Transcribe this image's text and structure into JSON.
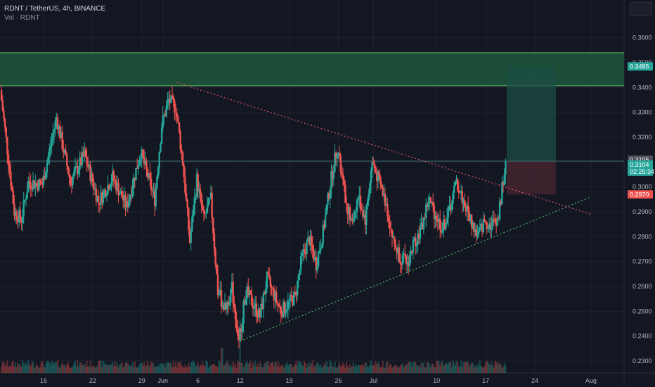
{
  "header": {
    "symbol_line": "RDNT / TetherUS, 4h, BINANCE",
    "volume_line": "Vol · RDNT"
  },
  "chart_data": {
    "type": "candlestick",
    "ylim": [
      0.2252,
      0.3752
    ],
    "y_ticks": [
      "0.3600",
      "0.3500",
      "0.3400",
      "0.3300",
      "0.3200",
      "0.3100",
      "0.3000",
      "0.2900",
      "0.2800",
      "0.2700",
      "0.2600",
      "0.2500",
      "0.2400",
      "0.2300"
    ],
    "x_ticks": [
      "15",
      "22",
      "29",
      "Jun",
      "6",
      "12",
      "19",
      "26",
      "Jul",
      "10",
      "17",
      "24",
      "Aug"
    ],
    "price_path": [
      {
        "date": "May 9",
        "price": 0.339
      },
      {
        "date": "May 10",
        "price": 0.315
      },
      {
        "date": "May 11",
        "price": 0.29
      },
      {
        "date": "May 12",
        "price": 0.287
      },
      {
        "date": "May 13",
        "price": 0.302
      },
      {
        "date": "May 15",
        "price": 0.301
      },
      {
        "date": "May 17",
        "price": 0.328
      },
      {
        "date": "May 19",
        "price": 0.302
      },
      {
        "date": "May 21",
        "price": 0.313
      },
      {
        "date": "May 23",
        "price": 0.294
      },
      {
        "date": "May 25",
        "price": 0.304
      },
      {
        "date": "May 27",
        "price": 0.292
      },
      {
        "date": "May 29",
        "price": 0.314
      },
      {
        "date": "May 31",
        "price": 0.295
      },
      {
        "date": "Jun 1",
        "price": 0.325
      },
      {
        "date": "Jun 2",
        "price": 0.335
      },
      {
        "date": "Jun 3",
        "price": 0.332
      },
      {
        "date": "Jun 4",
        "price": 0.31
      },
      {
        "date": "Jun 5",
        "price": 0.278
      },
      {
        "date": "Jun 6",
        "price": 0.303
      },
      {
        "date": "Jun 7",
        "price": 0.287
      },
      {
        "date": "Jun 8",
        "price": 0.295
      },
      {
        "date": "Jun 9",
        "price": 0.258
      },
      {
        "date": "Jun 10",
        "price": 0.251
      },
      {
        "date": "Jun 11",
        "price": 0.259
      },
      {
        "date": "Jun 12",
        "price": 0.238
      },
      {
        "date": "Jun 13",
        "price": 0.258
      },
      {
        "date": "Jun 15",
        "price": 0.248
      },
      {
        "date": "Jun 16",
        "price": 0.263
      },
      {
        "date": "Jun 18",
        "price": 0.25
      },
      {
        "date": "Jun 20",
        "price": 0.256
      },
      {
        "date": "Jun 21",
        "price": 0.272
      },
      {
        "date": "Jun 22",
        "price": 0.279
      },
      {
        "date": "Jun 23",
        "price": 0.269
      },
      {
        "date": "Jun 24",
        "price": 0.282
      },
      {
        "date": "Jun 25",
        "price": 0.301
      },
      {
        "date": "Jun 26",
        "price": 0.316
      },
      {
        "date": "Jun 27",
        "price": 0.298
      },
      {
        "date": "Jun 28",
        "price": 0.285
      },
      {
        "date": "Jun 29",
        "price": 0.296
      },
      {
        "date": "Jun 30",
        "price": 0.287
      },
      {
        "date": "Jul 1",
        "price": 0.31
      },
      {
        "date": "Jul 2",
        "price": 0.302
      },
      {
        "date": "Jul 3",
        "price": 0.293
      },
      {
        "date": "Jul 4",
        "price": 0.278
      },
      {
        "date": "Jul 5",
        "price": 0.272
      },
      {
        "date": "Jul 6",
        "price": 0.269
      },
      {
        "date": "Jul 7",
        "price": 0.278
      },
      {
        "date": "Jul 8",
        "price": 0.283
      },
      {
        "date": "Jul 9",
        "price": 0.295
      },
      {
        "date": "Jul 10",
        "price": 0.289
      },
      {
        "date": "Jul 11",
        "price": 0.283
      },
      {
        "date": "Jul 12",
        "price": 0.291
      },
      {
        "date": "Jul 13",
        "price": 0.302
      },
      {
        "date": "Jul 14",
        "price": 0.294
      },
      {
        "date": "Jul 15",
        "price": 0.287
      },
      {
        "date": "Jul 16",
        "price": 0.28
      },
      {
        "date": "Jul 17",
        "price": 0.286
      },
      {
        "date": "Jul 18",
        "price": 0.285
      },
      {
        "date": "Jul 19",
        "price": 0.288
      },
      {
        "date": "Jul 20",
        "price": 0.3104
      }
    ],
    "volume_spikes": [
      {
        "date": "Jun 9",
        "level": 0.4
      },
      {
        "date": "Jun 12",
        "level": 0.55
      },
      {
        "date": "Jun 26",
        "level": 0.3
      },
      {
        "date": "Jul 20",
        "level": 1.0
      }
    ],
    "zones": [
      {
        "kind": "supply",
        "start": "May 9",
        "end": "Aug 1",
        "low": 0.3407,
        "high": 0.354,
        "color": "#1f5b3c"
      },
      {
        "kind": "target",
        "start": "Jul 20",
        "end": "Jul 27",
        "low": 0.3104,
        "high": 0.3485,
        "color": "#1c4d46"
      },
      {
        "kind": "stop",
        "start": "Jul 20",
        "end": "Jul 27",
        "low": 0.297,
        "high": 0.3104,
        "color": "#4a2530"
      }
    ],
    "trendlines": [
      {
        "kind": "resistance",
        "color": "#e0506a",
        "from": {
          "date": "Jun 3",
          "price": 0.342
        },
        "to": {
          "date": "Aug 1",
          "price": 0.289
        }
      },
      {
        "kind": "support",
        "color": "#4fb36a",
        "from": {
          "date": "Jun 12",
          "price": 0.238
        },
        "to": {
          "date": "Aug 1",
          "price": 0.296
        }
      }
    ],
    "price_labels": [
      {
        "text": "0.3485",
        "price": 0.3485,
        "bg": "#26a69a",
        "fg": "#ffffff"
      },
      {
        "text": "0.3105",
        "price": 0.311,
        "bg": "#4a4e58",
        "fg": "#ffffff"
      },
      {
        "text": "0.3104",
        "sub": "02:25:34",
        "price": 0.309,
        "bg": "#26a69a",
        "fg": "#ffffff"
      },
      {
        "text": "0.2970",
        "price": 0.297,
        "bg": "#ef5350",
        "fg": "#ffffff"
      }
    ],
    "colors": {
      "background": "#131722",
      "up": "#26a69a",
      "down": "#ef5350",
      "grid": "#1e222d",
      "text": "#b2b5be"
    }
  }
}
